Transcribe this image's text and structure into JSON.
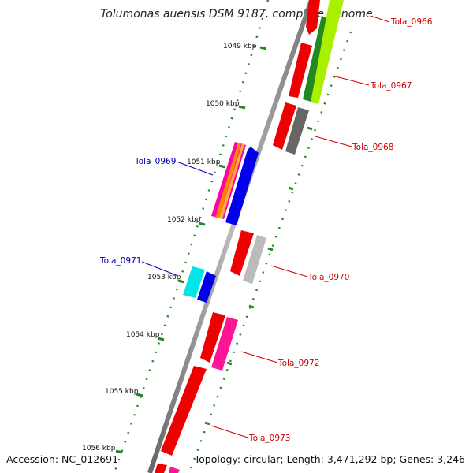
{
  "title": "Tolumonas auensis DSM 9187, complete genome",
  "footer": {
    "accession": "Accession: NC_012691",
    "summary": "Topology: circular; Length: 3,471,292 bp; Genes: 3,246"
  },
  "kbp_ticks": [
    "1049 kbp",
    "1050 kbp",
    "1051 kbp",
    "1052 kbp",
    "1053 kbp",
    "1054 kbp",
    "1055 kbp",
    "1056 kbp"
  ],
  "gene_labels": [
    {
      "text": "Tola_0966",
      "color": "#cc0000"
    },
    {
      "text": "Tola_0967",
      "color": "#cc0000"
    },
    {
      "text": "Tola_0968",
      "color": "#cc0000"
    },
    {
      "text": "Tola_0969",
      "color": "#0000aa"
    },
    {
      "text": "Tola_0970",
      "color": "#cc0000"
    },
    {
      "text": "Tola_0971",
      "color": "#0000aa"
    },
    {
      "text": "Tola_0972",
      "color": "#cc0000"
    },
    {
      "text": "Tola_0973",
      "color": "#cc0000"
    }
  ],
  "colors": {
    "cds": "#ee0000",
    "backbone": "#888888",
    "ticks": "#228822",
    "label_forward": "#cc0000",
    "label_reverse": "#0000aa"
  }
}
